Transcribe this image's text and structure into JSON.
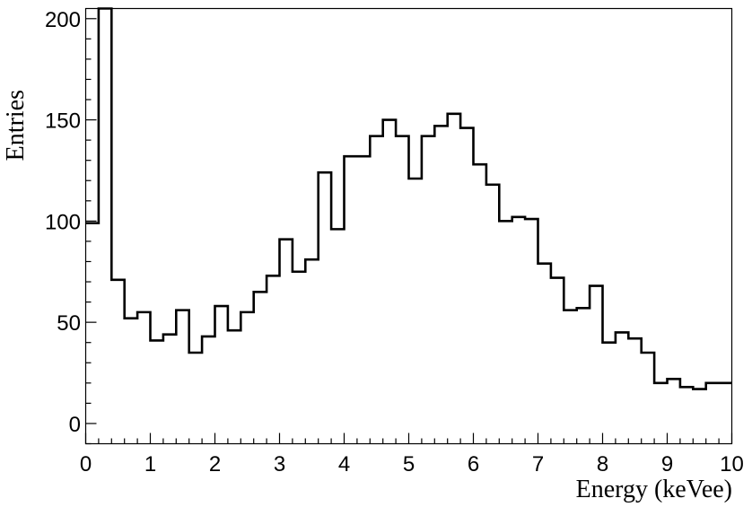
{
  "chart_data": {
    "type": "histogram",
    "xlabel": "Energy (keVee)",
    "ylabel": "Entries",
    "xlim": [
      0,
      10
    ],
    "ylim": [
      -10,
      205
    ],
    "grid": false,
    "line_color": "#000000",
    "x_ticks": [
      "0",
      "1",
      "2",
      "3",
      "4",
      "5",
      "6",
      "7",
      "8",
      "9",
      "10"
    ],
    "y_ticks": [
      "0",
      "50",
      "100",
      "150",
      "200"
    ],
    "bin_edges": [
      0,
      0.2,
      0.4,
      0.6,
      0.8,
      1.0,
      1.2,
      1.4,
      1.6,
      1.8,
      2.0,
      2.2,
      2.4,
      2.6,
      2.8,
      3.0,
      3.2,
      3.4,
      3.6,
      3.8,
      4.0,
      4.2,
      4.4,
      4.6,
      4.8,
      5.0,
      5.2,
      5.4,
      5.6,
      5.8,
      6.0,
      6.2,
      6.4,
      6.6,
      6.8,
      7.0,
      7.2,
      7.4,
      7.6,
      7.8,
      8.0,
      8.2,
      8.4,
      8.6,
      8.8,
      9.0,
      9.2,
      9.4,
      9.6,
      9.8,
      10.0
    ],
    "values": [
      99,
      205,
      71,
      52,
      55,
      41,
      44,
      56,
      35,
      43,
      58,
      46,
      55,
      65,
      73,
      91,
      75,
      81,
      124,
      96,
      132,
      132,
      142,
      150,
      142,
      121,
      142,
      147,
      153,
      146,
      128,
      118,
      100,
      102,
      101,
      79,
      72,
      56,
      57,
      68,
      40,
      45,
      42,
      35,
      20,
      22,
      18,
      17,
      20,
      20
    ]
  }
}
